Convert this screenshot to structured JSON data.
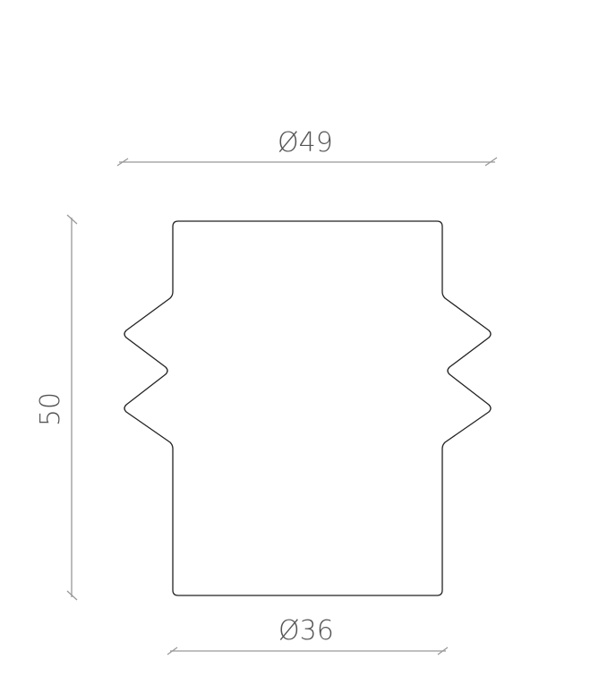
{
  "dimensions": {
    "top_diameter": "Ø49",
    "height": "50",
    "bottom_diameter": "Ø36"
  },
  "colors": {
    "outline": "#222222",
    "dimension_line": "#999999",
    "text": "#555555"
  }
}
